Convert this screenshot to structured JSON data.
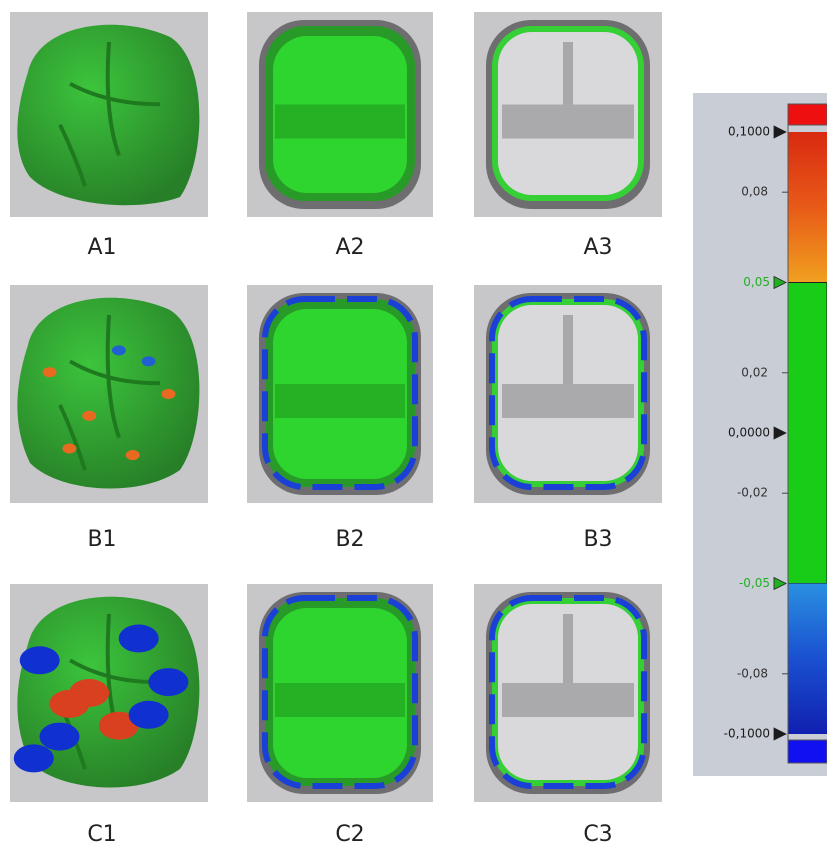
{
  "panels": [
    {
      "label": "A1"
    },
    {
      "label": "A2"
    },
    {
      "label": "A3"
    },
    {
      "label": "B1"
    },
    {
      "label": "B2"
    },
    {
      "label": "B3"
    },
    {
      "label": "C1"
    },
    {
      "label": "C2"
    },
    {
      "label": "C3"
    }
  ],
  "scale": {
    "ticks": [
      {
        "value": 0.1,
        "label": "0,1000",
        "color": "#1a1a1a"
      },
      {
        "value": 0.08,
        "label": "0,08",
        "color": "#333333"
      },
      {
        "value": 0.05,
        "label": "0,05",
        "color": "#22b022"
      },
      {
        "value": 0.02,
        "label": "0,02",
        "color": "#333333"
      },
      {
        "value": 0,
        "label": "0,0000",
        "color": "#1a1a1a"
      },
      {
        "value": -0.02,
        "label": "-0,02",
        "color": "#333333"
      },
      {
        "value": -0.05,
        "label": "-0,05",
        "color": "#22b022"
      },
      {
        "value": -0.08,
        "label": "-0,08",
        "color": "#333333"
      },
      {
        "value": -0.1,
        "label": "-0,1000",
        "color": "#1a1a1a"
      }
    ]
  }
}
